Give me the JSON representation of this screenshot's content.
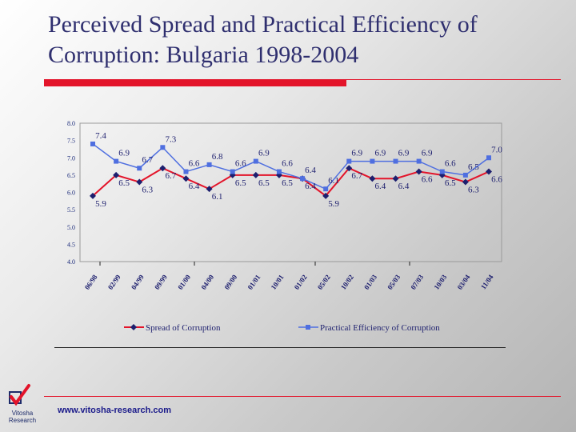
{
  "title_line1": "Perceived Spread and Practical Efficiency of",
  "title_line2": "Corruption: Bulgaria 1998-2004",
  "footer_url": "www.vitosha-research.com",
  "logo_text_1": "Vitosha",
  "logo_text_2": "Research",
  "colors": {
    "red": "#e3142a",
    "blue": "#4f6fe0",
    "navy": "#1d1f6e",
    "title": "#2f2f6f"
  },
  "chart_data": {
    "type": "line",
    "x": [
      "06/98",
      "02/99",
      "04/99",
      "09/99",
      "01/00",
      "04/00",
      "09/00",
      "01/01",
      "10/01",
      "01/02",
      "05/02",
      "10/02",
      "01/03",
      "05/03",
      "07/03",
      "10/03",
      "03/04",
      "11/04"
    ],
    "ylim": [
      4.0,
      8.0
    ],
    "yticks": [
      "4.0",
      "4.5",
      "5.0",
      "5.5",
      "6.0",
      "6.5",
      "7.0",
      "7.5",
      "8.0"
    ],
    "series": [
      {
        "name": "Spread of Corruption",
        "color": "#e3142a",
        "marker": "diamond",
        "values": [
          5.9,
          6.5,
          6.3,
          6.7,
          6.4,
          6.1,
          6.5,
          6.5,
          6.5,
          6.4,
          5.9,
          6.7,
          6.4,
          6.4,
          6.6,
          6.5,
          6.3,
          6.6
        ],
        "labels": [
          "5.9",
          "6.5",
          "6.3",
          "6.7",
          "6.4",
          "6.1",
          "6.5",
          "6.5",
          "6.5",
          "6.4",
          "5.9",
          "6.7",
          "6.4",
          "6.4",
          "6.6",
          "6.5",
          "6.3",
          "6.6"
        ]
      },
      {
        "name": "Practical Efficiency of Corruption",
        "color": "#4f6fe0",
        "marker": "square",
        "values": [
          7.4,
          6.9,
          6.7,
          7.3,
          6.6,
          6.8,
          6.6,
          6.9,
          6.6,
          6.4,
          6.1,
          6.9,
          6.9,
          6.9,
          6.9,
          6.6,
          6.5,
          7.0
        ],
        "labels": [
          "7.4",
          "6.9",
          "6.7",
          "7.3",
          "6.6",
          "6.8",
          "6.6",
          "6.9",
          "6.6",
          "6.4",
          "6.1",
          "6.9",
          "6.9",
          "6.9",
          "6.9",
          "6.6",
          "6.5",
          "7.0"
        ]
      }
    ],
    "legend": "bottom",
    "grid": false
  }
}
